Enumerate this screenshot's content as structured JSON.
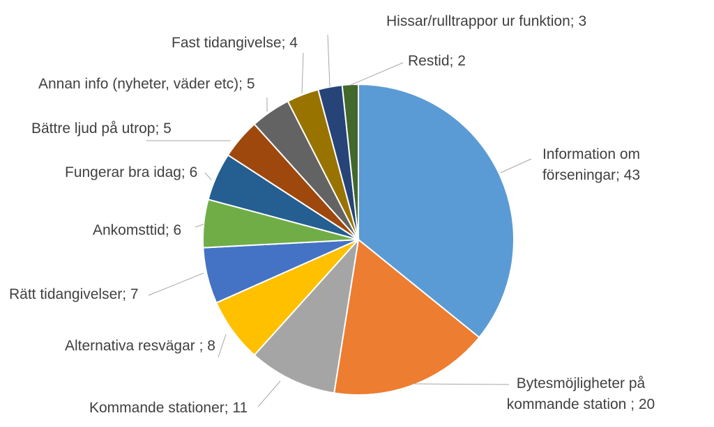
{
  "chart_data": {
    "type": "pie",
    "title": "",
    "slices": [
      {
        "label": "Information om förseningar; 43",
        "lines": [
          "Information om",
          "förseningar; 43"
        ],
        "category": "Information om förseningar",
        "value": 43,
        "color": "#5B9BD5"
      },
      {
        "label": "Bytesmöjligheter på kommande station ; 20",
        "lines": [
          "Bytesmöjligheter på",
          "kommande station ; 20"
        ],
        "category": "Bytesmöjligheter på kommande station",
        "value": 20,
        "color": "#ED7D31"
      },
      {
        "label": "Kommande stationer; 11",
        "lines": [
          "Kommande stationer; 11"
        ],
        "category": "Kommande stationer",
        "value": 11,
        "color": "#A5A5A5"
      },
      {
        "label": "Alternativa resvägar ; 8",
        "lines": [
          "Alternativa resvägar ; 8"
        ],
        "category": "Alternativa resvägar",
        "value": 8,
        "color": "#FFC000"
      },
      {
        "label": "Rätt tidangivelser; 7",
        "lines": [
          "Rätt tidangivelser; 7"
        ],
        "category": "Rätt tidangivelser",
        "value": 7,
        "color": "#4472C4"
      },
      {
        "label": "Ankomsttid; 6",
        "lines": [
          "Ankomsttid; 6"
        ],
        "category": "Ankomsttid",
        "value": 6,
        "color": "#70AD47"
      },
      {
        "label": "Fungerar bra idag; 6",
        "lines": [
          "Fungerar bra idag; 6"
        ],
        "category": "Fungerar bra idag",
        "value": 6,
        "color": "#255E91"
      },
      {
        "label": "Bättre ljud på utrop; 5",
        "lines": [
          "Bättre ljud på utrop; 5"
        ],
        "category": "Bättre ljud på utrop",
        "value": 5,
        "color": "#9E480E"
      },
      {
        "label": "Annan info (nyheter, väder etc); 5",
        "lines": [
          "Annan info (nyheter, väder etc); 5"
        ],
        "category": "Annan info (nyheter, väder etc)",
        "value": 5,
        "color": "#636363"
      },
      {
        "label": "Fast tidangivelse; 4",
        "lines": [
          "Fast tidangivelse; 4"
        ],
        "category": "Fast tidangivelse",
        "value": 4,
        "color": "#997300"
      },
      {
        "label": "Hissar/rulltrappor ur funktion; 3",
        "lines": [
          "Hissar/rulltrappor ur funktion; 3"
        ],
        "category": "Hissar/rulltrappor ur funktion",
        "value": 3,
        "color": "#264478"
      },
      {
        "label": "Restid; 2",
        "lines": [
          "Restid; 2"
        ],
        "category": "Restid",
        "value": 2,
        "color": "#43682B"
      }
    ]
  }
}
